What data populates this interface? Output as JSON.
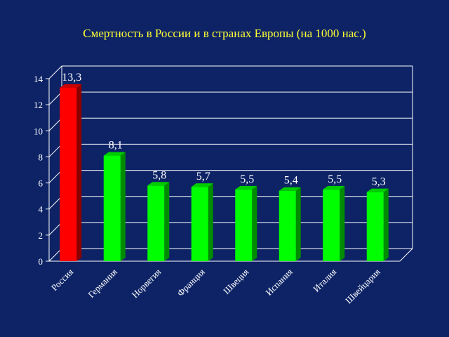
{
  "chart_data": {
    "type": "bar",
    "title": "Смертность в России и в странах Европы (на 1000 нас.)",
    "xlabel": "",
    "ylabel": "",
    "categories": [
      "Россия",
      "Германия",
      "Норвегия",
      "Франция",
      "Швеция",
      "Испания",
      "Италия",
      "Швейцария"
    ],
    "values": [
      13.3,
      8.1,
      5.8,
      5.7,
      5.5,
      5.4,
      5.5,
      5.3
    ],
    "value_labels": [
      "13,3",
      "8,1",
      "5,8",
      "5,7",
      "5,5",
      "5,4",
      "5,5",
      "5,3"
    ],
    "yticks": [
      "0",
      "2",
      "4",
      "6",
      "8",
      "10",
      "12",
      "14"
    ],
    "ylim": [
      0,
      14
    ],
    "grid": true,
    "legend": "none",
    "colors": {
      "background": "#0d2366",
      "title": "#ffff33",
      "highlight_bar": "#ff0000",
      "bar": "#00ff00",
      "axis": "#ffffff"
    }
  }
}
